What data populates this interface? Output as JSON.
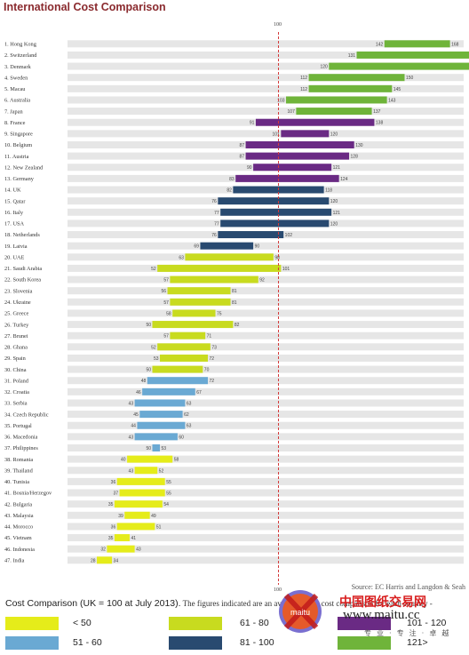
{
  "title": "International Cost Comparison",
  "reference_label": "100",
  "source": "Source: EC Harris and Langdon & Seah",
  "legend": {
    "title": "Cost Comparison (UK = 100 at July 2013).",
    "note": "The figures indicated are an average of the cost comparison for each country -",
    "items": [
      {
        "label": "< 50",
        "color": "#e5ec1a"
      },
      {
        "label": "61 - 80",
        "color": "#c8db1f"
      },
      {
        "label": "101 - 120",
        "color": "#6a2a84"
      },
      {
        "label": "51 - 60",
        "color": "#6aa9d3"
      },
      {
        "label": "81 - 100",
        "color": "#294a70"
      },
      {
        "label": "121>",
        "color": "#6fb43a"
      }
    ]
  },
  "watermark": {
    "line1": "中国图纸交易网",
    "line2": "www.maitu.cc",
    "line3": "专 业 · 专 注 · 卓 越",
    "badge": "maitu"
  },
  "chart_data": {
    "type": "bar",
    "orientation": "horizontal-range",
    "reference": 100,
    "xlim": [
      0,
      190
    ],
    "grid": false,
    "series": [
      {
        "name": "1. Hong Kong",
        "low": 142,
        "high": 168,
        "color": "#6fb43a"
      },
      {
        "name": "2. Switzerland",
        "low": 131,
        "high": 177,
        "color": "#6fb43a"
      },
      {
        "name": "3. Denmark",
        "low": 120,
        "high": 179,
        "color": "#6fb43a"
      },
      {
        "name": "4. Sweden",
        "low": 112,
        "high": 150,
        "color": "#6fb43a"
      },
      {
        "name": "5. Macau",
        "low": 112,
        "high": 145,
        "color": "#6fb43a"
      },
      {
        "name": "6. Australia",
        "low": 103,
        "high": 143,
        "color": "#6fb43a"
      },
      {
        "name": "7. Japan",
        "low": 107,
        "high": 137,
        "color": "#6fb43a"
      },
      {
        "name": "8. France",
        "low": 91,
        "high": 138,
        "color": "#6a2a84"
      },
      {
        "name": "9. Singapore",
        "low": 101,
        "high": 120,
        "color": "#6a2a84"
      },
      {
        "name": "10. Belgium",
        "low": 87,
        "high": 130,
        "color": "#6a2a84"
      },
      {
        "name": "11. Austria",
        "low": 87,
        "high": 128,
        "color": "#6a2a84"
      },
      {
        "name": "12. New Zealand",
        "low": 90,
        "high": 121,
        "color": "#6a2a84"
      },
      {
        "name": "13. Germany",
        "low": 83,
        "high": 124,
        "color": "#6a2a84"
      },
      {
        "name": "14. UK",
        "low": 82,
        "high": 118,
        "color": "#294a70"
      },
      {
        "name": "15. Qatar",
        "low": 76,
        "high": 120,
        "color": "#294a70"
      },
      {
        "name": "16. Italy",
        "low": 77,
        "high": 121,
        "color": "#294a70"
      },
      {
        "name": "17. USA",
        "low": 77,
        "high": 120,
        "color": "#294a70"
      },
      {
        "name": "18. Netherlands",
        "low": 76,
        "high": 102,
        "color": "#294a70"
      },
      {
        "name": "19. Latvia",
        "low": 69,
        "high": 90,
        "color": "#294a70"
      },
      {
        "name": "20. UAE",
        "low": 63,
        "high": 98,
        "color": "#c8db1f"
      },
      {
        "name": "21. Saudi Arabia",
        "low": 52,
        "high": 101,
        "color": "#c8db1f"
      },
      {
        "name": "22. South Korea",
        "low": 57,
        "high": 92,
        "color": "#c8db1f"
      },
      {
        "name": "23. Slovenia",
        "low": 56,
        "high": 81,
        "color": "#c8db1f"
      },
      {
        "name": "24. Ukraine",
        "low": 57,
        "high": 81,
        "color": "#c8db1f"
      },
      {
        "name": "25. Greece",
        "low": 58,
        "high": 75,
        "color": "#c8db1f"
      },
      {
        "name": "26. Turkey",
        "low": 50,
        "high": 82,
        "color": "#c8db1f"
      },
      {
        "name": "27. Brunei",
        "low": 57,
        "high": 71,
        "color": "#c8db1f"
      },
      {
        "name": "28. Ghana",
        "low": 52,
        "high": 73,
        "color": "#c8db1f"
      },
      {
        "name": "29. Spain",
        "low": 53,
        "high": 72,
        "color": "#c8db1f"
      },
      {
        "name": "30. China",
        "low": 50,
        "high": 70,
        "color": "#c8db1f"
      },
      {
        "name": "31. Poland",
        "low": 48,
        "high": 72,
        "color": "#6aa9d3"
      },
      {
        "name": "32. Croatia",
        "low": 46,
        "high": 67,
        "color": "#6aa9d3"
      },
      {
        "name": "33. Serbia",
        "low": 43,
        "high": 63,
        "color": "#6aa9d3"
      },
      {
        "name": "34. Czech Republic",
        "low": 45,
        "high": 62,
        "color": "#6aa9d3"
      },
      {
        "name": "35. Portugal",
        "low": 44,
        "high": 63,
        "color": "#6aa9d3"
      },
      {
        "name": "36. Macedonia",
        "low": 43,
        "high": 60,
        "color": "#6aa9d3"
      },
      {
        "name": "37. Philippines",
        "low": 50,
        "high": 53,
        "color": "#6aa9d3"
      },
      {
        "name": "38. Romania",
        "low": 40,
        "high": 58,
        "color": "#e5ec1a"
      },
      {
        "name": "39. Thailand",
        "low": 43,
        "high": 52,
        "color": "#e5ec1a"
      },
      {
        "name": "40. Tunisia",
        "low": 36,
        "high": 55,
        "color": "#e5ec1a"
      },
      {
        "name": "41. Bosnia/Herzegov",
        "low": 37,
        "high": 55,
        "color": "#e5ec1a"
      },
      {
        "name": "42. Bulgaria",
        "low": 35,
        "high": 54,
        "color": "#e5ec1a"
      },
      {
        "name": "43. Malaysia",
        "low": 39,
        "high": 49,
        "color": "#e5ec1a"
      },
      {
        "name": "44. Morocco",
        "low": 36,
        "high": 51,
        "color": "#e5ec1a"
      },
      {
        "name": "45. Vietnam",
        "low": 35,
        "high": 41,
        "color": "#e5ec1a"
      },
      {
        "name": "46. Indonesia",
        "low": 32,
        "high": 43,
        "color": "#e5ec1a"
      },
      {
        "name": "47. India",
        "low": 28,
        "high": 34,
        "color": "#e5ec1a"
      }
    ]
  }
}
